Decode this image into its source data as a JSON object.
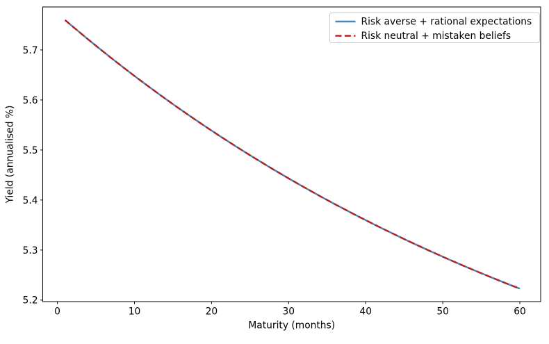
{
  "figure": {
    "background": "#ffffff",
    "spine_color": "#000000",
    "legend_border_color": "#cccccc",
    "legend_background": "#ffffff"
  },
  "chart_data": {
    "type": "line",
    "title": "",
    "xlabel": "Maturity (months)",
    "ylabel": "Yield (annualised %)",
    "grid": false,
    "legend_position": "upper right",
    "xlim": [
      -1.9,
      62.7
    ],
    "ylim": [
      5.197,
      5.786
    ],
    "x_ticks": [
      0,
      10,
      20,
      30,
      40,
      50,
      60
    ],
    "y_ticks": [
      5.2,
      5.3,
      5.4,
      5.5,
      5.6,
      5.7
    ],
    "x": [
      1,
      2,
      3,
      4,
      5,
      6,
      7,
      8,
      9,
      10,
      11,
      12,
      13,
      14,
      15,
      16,
      17,
      18,
      19,
      20,
      21,
      22,
      23,
      24,
      25,
      26,
      27,
      28,
      29,
      30,
      31,
      32,
      33,
      34,
      35,
      36,
      37,
      38,
      39,
      40,
      41,
      42,
      43,
      44,
      45,
      46,
      47,
      48,
      49,
      50,
      51,
      52,
      53,
      54,
      55,
      56,
      57,
      58,
      59,
      60
    ],
    "series": [
      {
        "name": "Risk averse + rational expectations",
        "color": "#4682b4",
        "style": "solid",
        "line_width": 2.4,
        "values": [
          5.7597,
          5.7467,
          5.7338,
          5.721,
          5.7085,
          5.6961,
          5.6838,
          5.6718,
          5.6598,
          5.6481,
          5.6365,
          5.6251,
          5.6138,
          5.6026,
          5.5916,
          5.5808,
          5.5701,
          5.5596,
          5.5491,
          5.5389,
          5.5287,
          5.5187,
          5.5088,
          5.4991,
          5.4895,
          5.48,
          5.4707,
          5.4614,
          5.4523,
          5.4433,
          5.4345,
          5.4257,
          5.4171,
          5.4085,
          5.4001,
          5.3918,
          5.3837,
          5.3756,
          5.3676,
          5.3598,
          5.352,
          5.3444,
          5.3368,
          5.3294,
          5.322,
          5.3147,
          5.3076,
          5.3005,
          5.2936,
          5.2867,
          5.2799,
          5.2732,
          5.2666,
          5.2601,
          5.2537,
          5.2473,
          5.2411,
          5.2349,
          5.2288,
          5.2228
        ]
      },
      {
        "name": "Risk neutral + mistaken beliefs",
        "color": "#b22222",
        "style": "dashed",
        "line_width": 2.4,
        "dash_pattern": "9 4.4",
        "values": [
          5.7597,
          5.7467,
          5.7338,
          5.721,
          5.7085,
          5.6961,
          5.6838,
          5.6718,
          5.6598,
          5.6481,
          5.6365,
          5.6251,
          5.6138,
          5.6026,
          5.5916,
          5.5808,
          5.5701,
          5.5596,
          5.5491,
          5.5389,
          5.5287,
          5.5187,
          5.5088,
          5.4991,
          5.4895,
          5.48,
          5.4707,
          5.4614,
          5.4523,
          5.4433,
          5.4345,
          5.4257,
          5.4171,
          5.4085,
          5.4001,
          5.3918,
          5.3837,
          5.3756,
          5.3676,
          5.3598,
          5.352,
          5.3444,
          5.3368,
          5.3294,
          5.322,
          5.3147,
          5.3076,
          5.3005,
          5.2936,
          5.2867,
          5.2799,
          5.2732,
          5.2666,
          5.2601,
          5.2537,
          5.2473,
          5.2411,
          5.2349,
          5.2288,
          5.2228
        ]
      }
    ]
  }
}
